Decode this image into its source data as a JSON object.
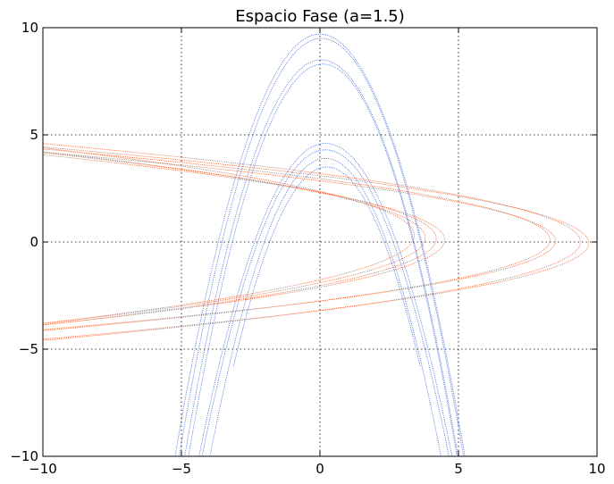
{
  "chart_data": {
    "type": "line",
    "title": "Espacio Fase (a=1.5)",
    "xlabel": "",
    "ylabel": "",
    "xlim": [
      -10,
      10
    ],
    "ylim": [
      -10,
      10
    ],
    "xticks": [
      -10,
      -5,
      0,
      5,
      10
    ],
    "yticks": [
      -10,
      -5,
      0,
      5,
      10
    ],
    "xtick_labels": [
      "−10",
      "−5",
      "0",
      "5",
      "10"
    ],
    "ytick_labels": [
      "−10",
      "−5",
      "0",
      "5",
      "10"
    ],
    "grid": true,
    "series": [
      {
        "color": "#1f4fd6",
        "description": "downward parabolas y = v - k*x^2 (with slight x shift)",
        "curves": [
          {
            "vertex": 9.7,
            "k": 0.72,
            "shift": 0.0,
            "y_end": -10
          },
          {
            "vertex": 9.5,
            "k": 0.74,
            "shift": 0.05,
            "y_end": -10
          },
          {
            "vertex": 8.5,
            "k": 0.76,
            "shift": 0.05,
            "y_end": -10
          },
          {
            "vertex": 8.3,
            "k": 0.78,
            "shift": 0.1,
            "y_end": -10
          },
          {
            "vertex": 4.6,
            "k": 0.7,
            "shift": 0.2,
            "y_end": -10
          },
          {
            "vertex": 4.3,
            "k": 0.72,
            "shift": 0.2,
            "y_end": -10
          },
          {
            "vertex": 3.9,
            "k": 0.8,
            "shift": 0.2,
            "y_end": -10
          },
          {
            "vertex": 3.5,
            "k": 0.82,
            "shift": 0.25,
            "y_end": -5.8
          }
        ]
      },
      {
        "color": "#e0440e",
        "description": "sideways parabolas x = v - k*y^2 (with slight y shift)",
        "curves": [
          {
            "vertex": 9.7,
            "k": 0.98,
            "shift": -0.05
          },
          {
            "vertex": 9.4,
            "k": 0.92,
            "shift": 0.0
          },
          {
            "vertex": 8.5,
            "k": 1.08,
            "shift": 0.05
          },
          {
            "vertex": 8.3,
            "k": 1.02,
            "shift": 0.1
          },
          {
            "vertex": 4.5,
            "k": 0.92,
            "shift": 0.1
          },
          {
            "vertex": 4.2,
            "k": 0.88,
            "shift": 0.15
          },
          {
            "vertex": 3.8,
            "k": 0.86,
            "shift": 0.2
          },
          {
            "vertex": 3.4,
            "k": 0.8,
            "shift": 0.3
          }
        ]
      }
    ]
  }
}
